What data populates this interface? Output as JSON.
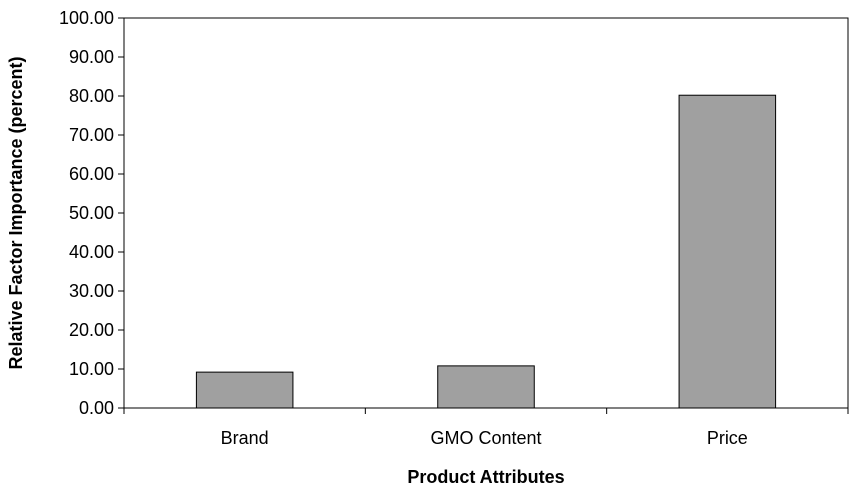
{
  "chart_data": {
    "type": "bar",
    "title": "",
    "xlabel": "Product Attributes",
    "ylabel": "Relative Factor Importance (percent)",
    "categories": [
      "Brand",
      "GMO Content",
      "Price"
    ],
    "values": [
      9.2,
      10.8,
      80.2
    ],
    "ylim": [
      0,
      100
    ],
    "yticks": [
      "0.00",
      "10.00",
      "20.00",
      "30.00",
      "40.00",
      "50.00",
      "60.00",
      "70.00",
      "80.00",
      "90.00",
      "100.00"
    ],
    "ytick_values": [
      0,
      10,
      20,
      30,
      40,
      50,
      60,
      70,
      80,
      90,
      100
    ],
    "grid": false,
    "legend": "none",
    "bar_color": "#a0a0a0"
  }
}
